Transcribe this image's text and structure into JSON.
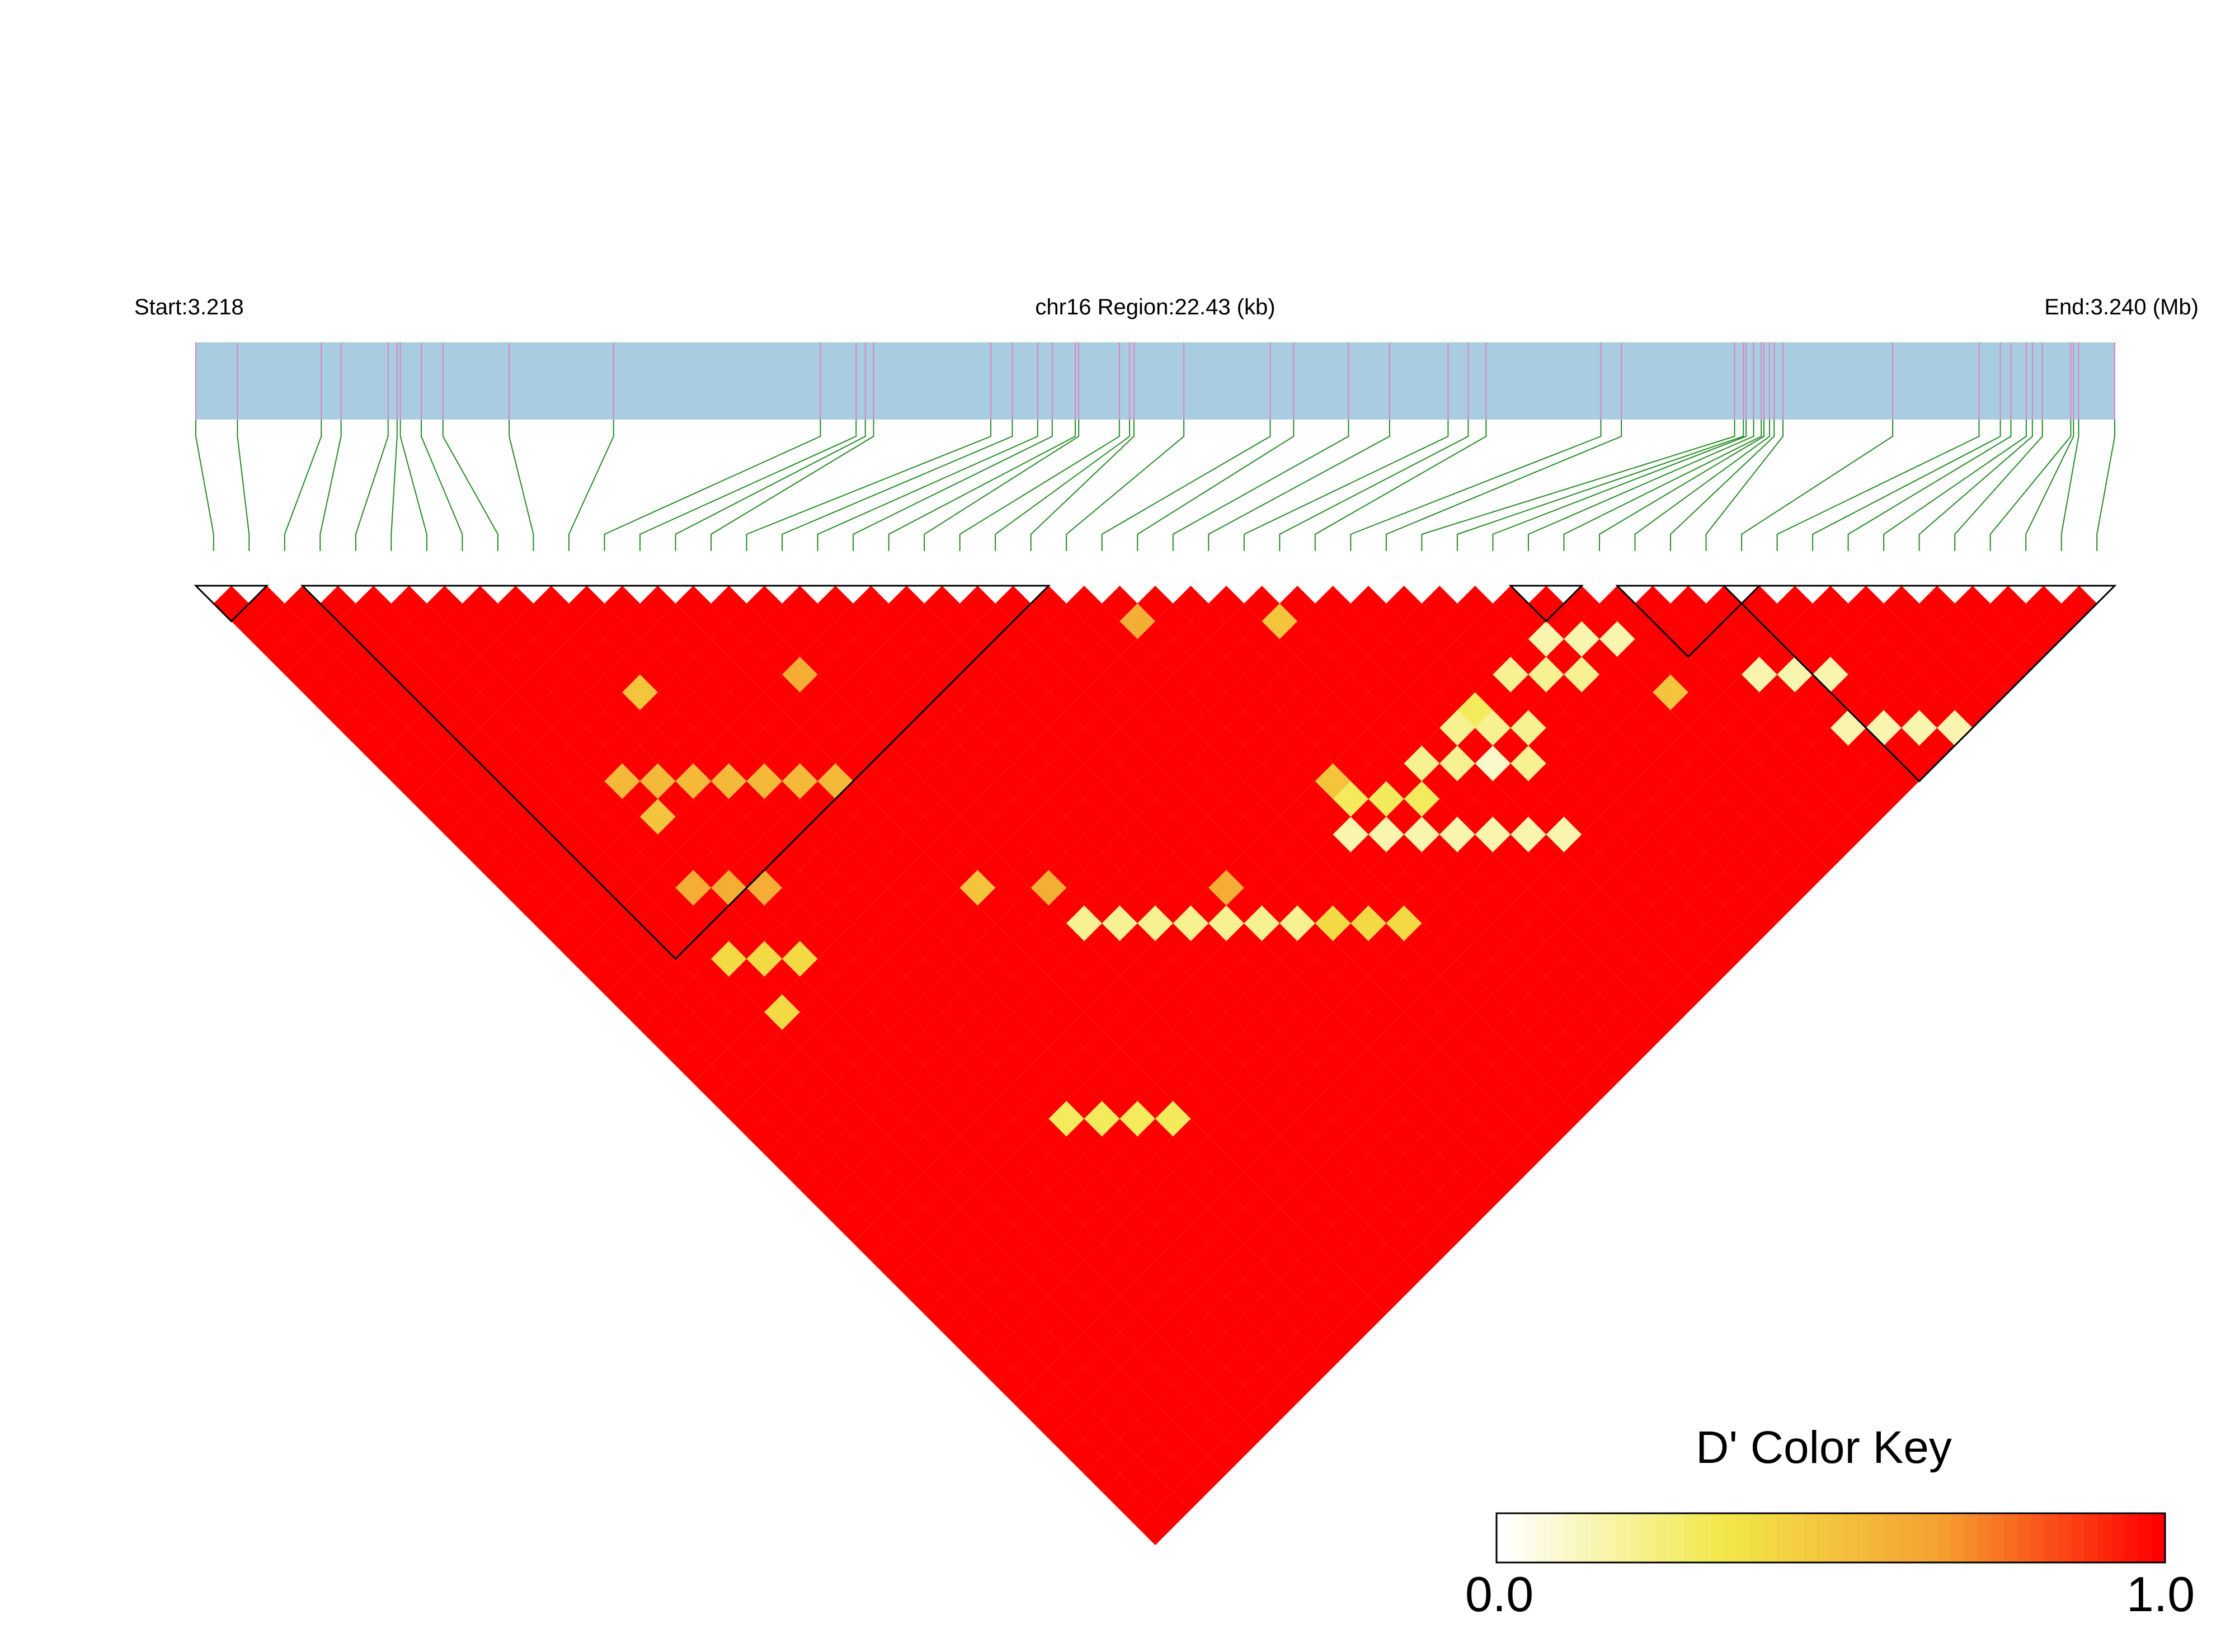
{
  "chart_data": {
    "type": "heatmap",
    "subtype": "ld-triangle",
    "title": "",
    "region": {
      "start_label": "Start:3.218",
      "center_label": "chr16 Region:22.43 (kb)",
      "end_label": "End:3.240 (Mb)",
      "chromosome": "chr16",
      "start_mb": 3.218,
      "end_mb": 3.24,
      "length_kb": 22.43
    },
    "snp_count": 54,
    "snp_positions_rel": [
      0,
      0.0217,
      0.0654,
      0.0757,
      0.1002,
      0.1049,
      0.1066,
      0.1175,
      0.1288,
      0.1633,
      0.2177,
      0.3255,
      0.3441,
      0.3489,
      0.3532,
      0.4143,
      0.4255,
      0.4387,
      0.4463,
      0.4583,
      0.4601,
      0.4813,
      0.4866,
      0.4889,
      0.5149,
      0.5599,
      0.5721,
      0.6007,
      0.6221,
      0.6526,
      0.6631,
      0.6724,
      0.7322,
      0.7429,
      0.8019,
      0.8065,
      0.8079,
      0.8118,
      0.8158,
      0.8172,
      0.8201,
      0.8225,
      0.8271,
      0.8843,
      0.9293,
      0.9404,
      0.9459,
      0.9539,
      0.9571,
      0.9623,
      0.9771,
      0.9785,
      0.9812,
      1.0
    ],
    "ld_blocks": [
      [
        0,
        1
      ],
      [
        3,
        23
      ],
      [
        37,
        38
      ],
      [
        40,
        43
      ],
      [
        43,
        53
      ]
    ],
    "background_dprime": 1.0,
    "low_dprime_diagonals": [
      {
        "offset": 11,
        "from": 6,
        "to": 12,
        "value": 0.55
      },
      {
        "offset": 17,
        "from": 5,
        "to": 7,
        "value": 0.6
      },
      {
        "offset": 19,
        "from": 15,
        "to": 21,
        "value": 0.2
      },
      {
        "offset": 19,
        "from": 22,
        "to": 24,
        "value": 0.4
      },
      {
        "offset": 14,
        "from": 25,
        "to": 31,
        "value": 0.15
      },
      {
        "offset": 12,
        "from": 26,
        "to": 28,
        "value": 0.3
      },
      {
        "offset": 10,
        "from": 29,
        "to": 32,
        "value": 0.2
      },
      {
        "offset": 8,
        "from": 31,
        "to": 33,
        "value": 0.2
      },
      {
        "offset": 5,
        "from": 34,
        "to": 36,
        "value": 0.2
      },
      {
        "offset": 3,
        "from": 36,
        "to": 38,
        "value": 0.15
      },
      {
        "offset": 5,
        "from": 41,
        "to": 43,
        "value": 0.15
      },
      {
        "offset": 8,
        "from": 42,
        "to": 45,
        "value": 0.15
      },
      {
        "offset": 21,
        "from": 4,
        "to": 6,
        "value": 0.4
      },
      {
        "offset": 30,
        "from": 9,
        "to": 12,
        "value": 0.3
      }
    ],
    "low_dprime_cells": [
      {
        "i": 29,
        "j": 31,
        "value": 0.5
      },
      {
        "i": 38,
        "j": 44,
        "value": 0.5
      },
      {
        "i": 25,
        "j": 27,
        "value": 0.6
      },
      {
        "i": 32,
        "j": 39,
        "value": 0.3
      },
      {
        "i": 9,
        "j": 15,
        "value": 0.5
      },
      {
        "i": 14,
        "j": 19,
        "value": 0.6
      },
      {
        "i": 31,
        "j": 41,
        "value": 0.1
      },
      {
        "i": 13,
        "j": 30,
        "value": 0.5
      },
      {
        "i": 15,
        "j": 32,
        "value": 0.6
      },
      {
        "i": 26,
        "j": 37,
        "value": 0.5
      },
      {
        "i": 20,
        "j": 37,
        "value": 0.6
      },
      {
        "i": 4,
        "j": 28,
        "value": 0.4
      },
      {
        "i": 6,
        "j": 19,
        "value": 0.5
      }
    ],
    "colorscale": {
      "label": "D' Color Key",
      "min": 0.0,
      "max": 1.0,
      "min_label": "0.0",
      "max_label": "1.0",
      "stops": [
        "#ffffff",
        "#f2e84a",
        "#f5a030",
        "#ff0000"
      ]
    },
    "colors": {
      "gene_bar": "#a8cde0",
      "snp_marker": "#e080c0",
      "connector": "#228b22",
      "block_outline": "#000000"
    }
  }
}
